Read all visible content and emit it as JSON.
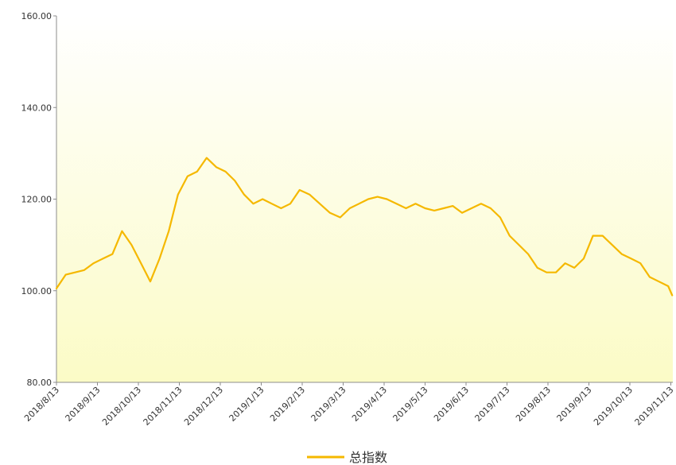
{
  "chart_data": {
    "type": "line",
    "title": "",
    "xlabel": "",
    "ylabel": "",
    "ylim": [
      80,
      160
    ],
    "y_ticks": [
      "80.00",
      "100.00",
      "120.00",
      "140.00",
      "160.00"
    ],
    "x_ticks": [
      "2018/8/13",
      "2018/9/13",
      "2018/10/13",
      "2018/11/13",
      "2018/12/13",
      "2019/1/13",
      "2019/2/13",
      "2019/3/13",
      "2019/4/13",
      "2019/5/13",
      "2019/6/13",
      "2019/7/13",
      "2019/8/13",
      "2019/9/13",
      "2019/10/13",
      "2019/11/13"
    ],
    "grid": false,
    "legend_position": "bottom",
    "series": [
      {
        "name": "总指数",
        "color": "#F5B800",
        "x": [
          "2018/8/13",
          "2018/8/20",
          "2018/8/27",
          "2018/9/3",
          "2018/9/10",
          "2018/9/17",
          "2018/9/24",
          "2018/10/1",
          "2018/10/8",
          "2018/10/15",
          "2018/10/22",
          "2018/10/29",
          "2018/11/5",
          "2018/11/12",
          "2018/11/19",
          "2018/11/26",
          "2018/12/3",
          "2018/12/10",
          "2018/12/17",
          "2018/12/24",
          "2018/12/31",
          "2019/1/7",
          "2019/1/14",
          "2019/1/21",
          "2019/1/28",
          "2019/2/4",
          "2019/2/11",
          "2019/2/18",
          "2019/2/25",
          "2019/3/4",
          "2019/3/11",
          "2019/3/18",
          "2019/3/25",
          "2019/4/1",
          "2019/4/8",
          "2019/4/15",
          "2019/4/22",
          "2019/4/29",
          "2019/5/6",
          "2019/5/13",
          "2019/5/20",
          "2019/5/27",
          "2019/6/3",
          "2019/6/10",
          "2019/6/17",
          "2019/6/24",
          "2019/7/1",
          "2019/7/8",
          "2019/7/15",
          "2019/7/22",
          "2019/7/29",
          "2019/8/5",
          "2019/8/12",
          "2019/8/19",
          "2019/8/26",
          "2019/9/2",
          "2019/9/9",
          "2019/9/16",
          "2019/9/23",
          "2019/9/30",
          "2019/10/7",
          "2019/10/14",
          "2019/10/21",
          "2019/10/28",
          "2019/11/4",
          "2019/11/11",
          "2019/11/14"
        ],
        "values": [
          100.5,
          103.5,
          104,
          104.5,
          106,
          107,
          108,
          113,
          110,
          106,
          102,
          107,
          113,
          121,
          125,
          126,
          129,
          127,
          126,
          124,
          121,
          119,
          120,
          119,
          118,
          119,
          122,
          121,
          119,
          117,
          116,
          118,
          119,
          120,
          120.5,
          120,
          119,
          118,
          119,
          118,
          117.5,
          118,
          118.5,
          117,
          118,
          119,
          118,
          116,
          112,
          110,
          108,
          105,
          104,
          104,
          106,
          105,
          107,
          112,
          112,
          110,
          108,
          107,
          106,
          103,
          102,
          101,
          99
        ]
      }
    ]
  },
  "legend": {
    "label": "总指数"
  }
}
